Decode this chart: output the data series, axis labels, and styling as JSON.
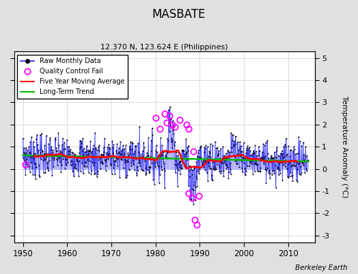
{
  "title": "MASBATE",
  "subtitle": "12.370 N, 123.624 E (Philippines)",
  "ylabel": "Temperature Anomaly (°C)",
  "credit": "Berkeley Earth",
  "xlim": [
    1948,
    2016
  ],
  "ylim": [
    -3.3,
    5.3
  ],
  "yticks": [
    -3,
    -2,
    -1,
    0,
    1,
    2,
    3,
    4,
    5
  ],
  "xticks": [
    1950,
    1960,
    1970,
    1980,
    1990,
    2000,
    2010
  ],
  "raw_line_color": "#4444ff",
  "raw_stem_color": "#aaaaff",
  "dot_color": "#000000",
  "qc_color": "#ff00ff",
  "moving_avg_color": "#ff0000",
  "trend_color": "#00bb00",
  "background_color": "#e0e0e0",
  "plot_bg_color": "#ffffff",
  "grid_color": "#cccccc",
  "seed": 7
}
